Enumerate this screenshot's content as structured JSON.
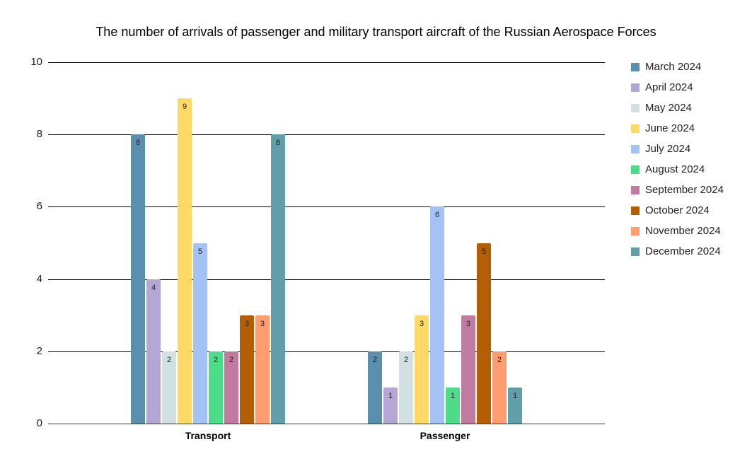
{
  "chart_data": {
    "type": "bar",
    "title": "The number of arrivals of passenger and military transport aircraft of the Russian Aerospace Forces",
    "xlabel": "",
    "ylabel": "",
    "ylim": [
      0,
      10
    ],
    "yticks": [
      0,
      2,
      4,
      6,
      8,
      10
    ],
    "grid": true,
    "legend_position": "right",
    "categories": [
      "Transport",
      "Passenger"
    ],
    "series": [
      {
        "name": "March 2024",
        "color": "#5b8fae",
        "values": [
          8,
          2
        ]
      },
      {
        "name": "April 2024",
        "color": "#b4a7d6",
        "values": [
          4,
          1
        ]
      },
      {
        "name": "May 2024",
        "color": "#d0e0e3",
        "values": [
          2,
          2
        ]
      },
      {
        "name": "June 2024",
        "color": "#ffd966",
        "values": [
          9,
          3
        ]
      },
      {
        "name": "July 2024",
        "color": "#a4c2f4",
        "values": [
          5,
          6
        ]
      },
      {
        "name": "August 2024",
        "color": "#4edc8a",
        "values": [
          2,
          1
        ]
      },
      {
        "name": "September 2024",
        "color": "#c27ba0",
        "values": [
          2,
          3
        ]
      },
      {
        "name": "October 2024",
        "color": "#b45f06",
        "values": [
          3,
          5
        ]
      },
      {
        "name": "November 2024",
        "color": "#ff9c70",
        "values": [
          3,
          2
        ]
      },
      {
        "name": "December 2024",
        "color": "#609eaa",
        "values": [
          8,
          1
        ]
      }
    ]
  }
}
